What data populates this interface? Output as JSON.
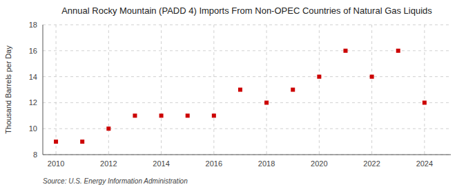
{
  "chart_data": {
    "type": "scatter",
    "title": "Annual Rocky Mountain (PADD 4) Imports From Non-OPEC Countries of Natural Gas Liquids",
    "ylabel": "Thousand Barrels per Day",
    "source": "Source: U.S. Energy Information Administration",
    "x": [
      2010,
      2011,
      2012,
      2013,
      2014,
      2015,
      2016,
      2017,
      2018,
      2019,
      2020,
      2021,
      2022,
      2023,
      2024
    ],
    "values": [
      9,
      9,
      10,
      11,
      11,
      11,
      11,
      13,
      12,
      13,
      14,
      16,
      14,
      16,
      12
    ],
    "color": "#cc0000",
    "marker": "square",
    "grid": true,
    "xlim": [
      2009.5,
      2025.0
    ],
    "xticks": [
      2010,
      2012,
      2014,
      2016,
      2018,
      2020,
      2022,
      2024
    ],
    "ylim": [
      8,
      18
    ],
    "yticks": [
      8,
      10,
      12,
      14,
      16,
      18
    ]
  }
}
